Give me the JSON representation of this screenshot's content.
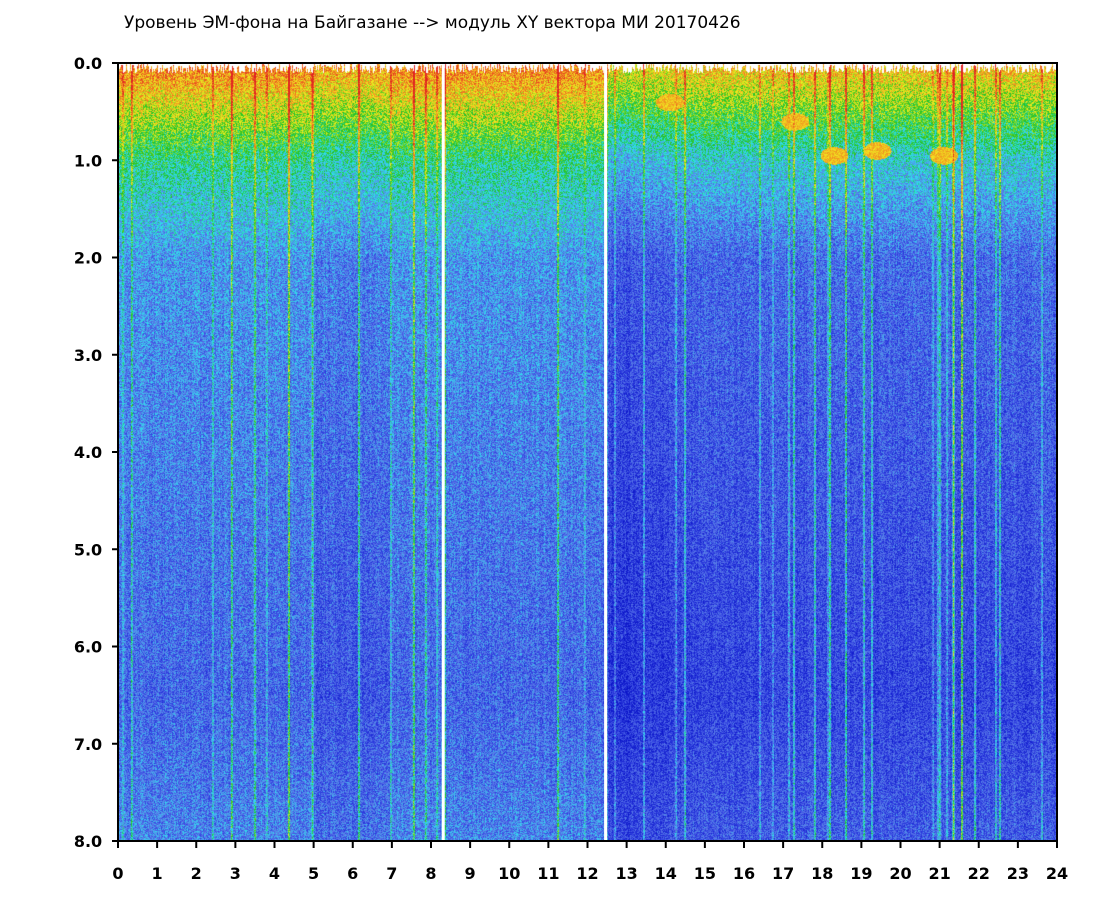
{
  "chart_data": {
    "type": "heatmap",
    "title": "Уровень ЭМ-фона на Байгазане   -->  модуль XY вектора МИ   20170426",
    "xlabel": "",
    "ylabel": "",
    "xlim": [
      0,
      24
    ],
    "ylim": [
      0,
      8
    ],
    "y_inverted": true,
    "x_ticks": [
      "0",
      "1",
      "2",
      "3",
      "4",
      "5",
      "6",
      "7",
      "8",
      "9",
      "10",
      "11",
      "12",
      "13",
      "14",
      "15",
      "16",
      "17",
      "18",
      "19",
      "20",
      "21",
      "22",
      "23",
      "24"
    ],
    "y_ticks": [
      "0.0",
      "1.0",
      "2.0",
      "3.0",
      "4.0",
      "5.0",
      "6.0",
      "7.0",
      "8.0"
    ],
    "grid": false,
    "colorscale": [
      "#0a14c8",
      "#3040e0",
      "#5a7ae8",
      "#30e0f0",
      "#20c020",
      "#f0f020",
      "#f08020",
      "#e02020"
    ],
    "background_color": "#ffffff",
    "data_gaps_hours": [
      8.3,
      12.45
    ],
    "high_level_patches": [
      {
        "hour": 14.1,
        "freq": 0.4
      },
      {
        "hour": 17.3,
        "freq": 0.6
      },
      {
        "hour": 18.3,
        "freq": 0.95
      },
      {
        "hour": 19.4,
        "freq": 0.9
      },
      {
        "hour": 21.1,
        "freq": 0.95
      }
    ]
  }
}
